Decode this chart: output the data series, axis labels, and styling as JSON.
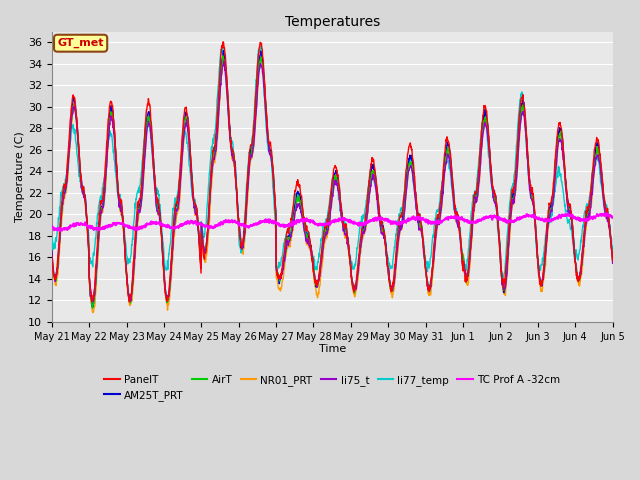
{
  "title": "Temperatures",
  "xlabel": "Time",
  "ylabel": "Temperature (C)",
  "ylim": [
    10,
    37
  ],
  "yticks": [
    10,
    12,
    14,
    16,
    18,
    20,
    22,
    24,
    26,
    28,
    30,
    32,
    34,
    36
  ],
  "bg_color": "#e8e8e8",
  "grid_color": "#ffffff",
  "annotation_text": "GT_met",
  "annotation_box_color": "#ffff99",
  "annotation_border_color": "#8b4513",
  "series_colors": {
    "PanelT": "#ff0000",
    "AM25T_PRT": "#0000cc",
    "AirT": "#00cc00",
    "NR01_PRT": "#ff9900",
    "li75_t": "#9900cc",
    "li77_temp": "#00cccc",
    "TC Prof A -32cm": "#ff00ff"
  },
  "tick_labels": [
    "May 21",
    "May 22",
    "May 23",
    "May 24",
    "May 25",
    "May 26",
    "May 27",
    "May 28",
    "May 29",
    "May 30",
    "May 31",
    "Jun 1",
    "Jun 2",
    "Jun 3",
    "Jun 4",
    "Jun 5"
  ],
  "fig_width": 6.4,
  "fig_height": 4.8,
  "dpi": 100
}
